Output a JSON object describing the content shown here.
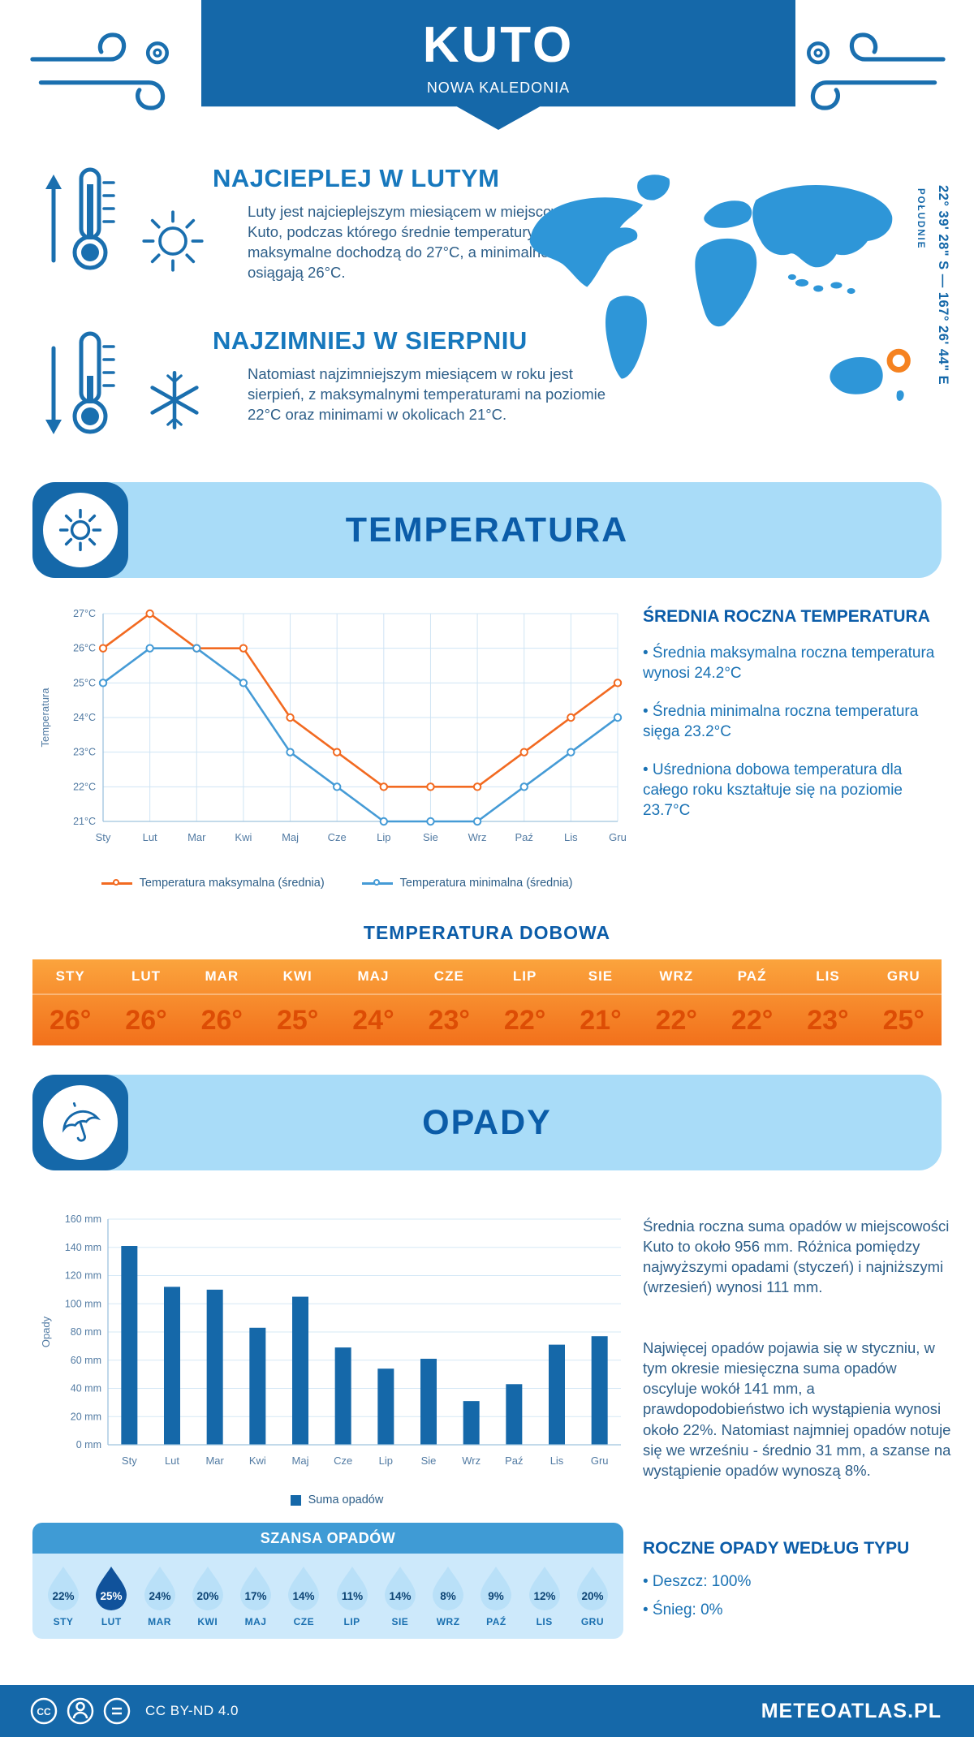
{
  "header": {
    "title": "KUTO",
    "subtitle": "NOWA KALEDONIA"
  },
  "location": {
    "coordinates": "22° 39' 28\" S — 167° 26' 44\" E",
    "hemisphere_label": "POŁUDNIE"
  },
  "highlights": {
    "warm": {
      "title": "NAJCIEPLEJ W LUTYM",
      "text": "Luty jest najcieplejszym miesiącem w miejscowości Kuto, podczas którego średnie temperatury maksymalne dochodzą do 27°C, a minimalne osiągają 26°C."
    },
    "cold": {
      "title": "NAJZIMNIEJ W SIERPNIU",
      "text": "Natomiast najzimniejszym miesiącem w roku jest sierpień, z maksymalnymi temperaturami na poziomie 22°C oraz minimami w okolicach 21°C."
    }
  },
  "temperature": {
    "section_title": "TEMPERATURA",
    "annual_heading": "ŚREDNIA ROCZNA TEMPERATURA",
    "annual_bullets": [
      "• Średnia maksymalna roczna temperatura wynosi 24.2°C",
      "• Średnia minimalna roczna temperatura sięga 23.2°C",
      "• Uśredniona dobowa temperatura dla całego roku kształtuje się na poziomie 23.7°C"
    ],
    "daily_heading": "TEMPERATURA DOBOWA",
    "daily_months": [
      "STY",
      "LUT",
      "MAR",
      "KWI",
      "MAJ",
      "CZE",
      "LIP",
      "SIE",
      "WRZ",
      "PAŹ",
      "LIS",
      "GRU"
    ],
    "daily_values": [
      "26°",
      "26°",
      "26°",
      "25°",
      "24°",
      "23°",
      "22°",
      "21°",
      "22°",
      "22°",
      "23°",
      "25°"
    ]
  },
  "precipitation": {
    "section_title": "OPADY",
    "paragraph_1": "Średnia roczna suma opadów w miejscowości Kuto to około 956 mm. Różnica pomiędzy najwyższymi opadami (styczeń) i najniższymi (wrzesień) wynosi 111 mm.",
    "paragraph_2": "Najwięcej opadów pojawia się w styczniu, w tym okresie miesięczna suma opadów oscyluje wokół 141 mm, a prawdopodobieństwo ich wystąpienia wynosi około 22%. Natomiast najmniej opadów notuje się we wrześniu - średnio 31 mm, a szanse na wystąpienie opadów wynoszą 8%.",
    "chance_heading": "SZANSA OPADÓW",
    "chance_months": [
      "STY",
      "LUT",
      "MAR",
      "KWI",
      "MAJ",
      "CZE",
      "LIP",
      "SIE",
      "WRZ",
      "PAŹ",
      "LIS",
      "GRU"
    ],
    "chance_values": [
      "22%",
      "25%",
      "24%",
      "20%",
      "17%",
      "14%",
      "11%",
      "14%",
      "8%",
      "9%",
      "12%",
      "20%"
    ],
    "chance_highlight_index": 1,
    "type_heading": "ROCZNE OPADY WEDŁUG TYPU",
    "type_bullets": [
      "• Deszcz: 100%",
      "• Śnieg: 0%"
    ]
  },
  "chart_data": [
    {
      "type": "line",
      "title": "TEMPERATURA",
      "categories": [
        "Sty",
        "Lut",
        "Mar",
        "Kwi",
        "Maj",
        "Cze",
        "Lip",
        "Sie",
        "Wrz",
        "Paź",
        "Lis",
        "Gru"
      ],
      "series": [
        {
          "name": "Temperatura maksymalna (średnia)",
          "color": "#f26a21",
          "values": [
            26,
            27,
            26,
            26,
            24,
            23,
            22,
            22,
            22,
            23,
            24,
            25
          ]
        },
        {
          "name": "Temperatura minimalna (średnia)",
          "color": "#459bd6",
          "values": [
            25,
            26,
            26,
            25,
            23,
            22,
            21,
            21,
            21,
            22,
            23,
            24
          ]
        }
      ],
      "xlabel": "",
      "ylabel": "Temperatura",
      "ylim": [
        21,
        27
      ],
      "ytick_step": 1,
      "ytick_suffix": "°C",
      "grid": true,
      "legend_position": "bottom"
    },
    {
      "type": "bar",
      "title": "OPADY",
      "categories": [
        "Sty",
        "Lut",
        "Mar",
        "Kwi",
        "Maj",
        "Cze",
        "Lip",
        "Sie",
        "Wrz",
        "Paź",
        "Lis",
        "Gru"
      ],
      "series": [
        {
          "name": "Suma opadów",
          "color": "#1568a9",
          "values": [
            141,
            112,
            110,
            83,
            105,
            69,
            54,
            61,
            31,
            43,
            71,
            77
          ]
        }
      ],
      "xlabel": "",
      "ylabel": "Opady",
      "ylim": [
        0,
        160
      ],
      "ytick_step": 20,
      "ytick_suffix": " mm",
      "grid": true,
      "legend_position": "bottom"
    }
  ],
  "footer": {
    "license": "CC BY-ND 4.0",
    "brand": "METEOATLAS.PL"
  },
  "colors": {
    "primary": "#1568a9",
    "band_bg": "#a9dcf8",
    "title_blue": "#0b5ca8",
    "max_line": "#f26a21",
    "min_line": "#459bd6",
    "bar": "#1568a9",
    "table_gradient_top": "#fba43d",
    "table_gradient_bottom": "#f2701b",
    "table_value_text": "#dd4d05",
    "drop_light": "#b9e0f8",
    "drop_dark": "#10529b",
    "marker_orange": "#f58220"
  }
}
